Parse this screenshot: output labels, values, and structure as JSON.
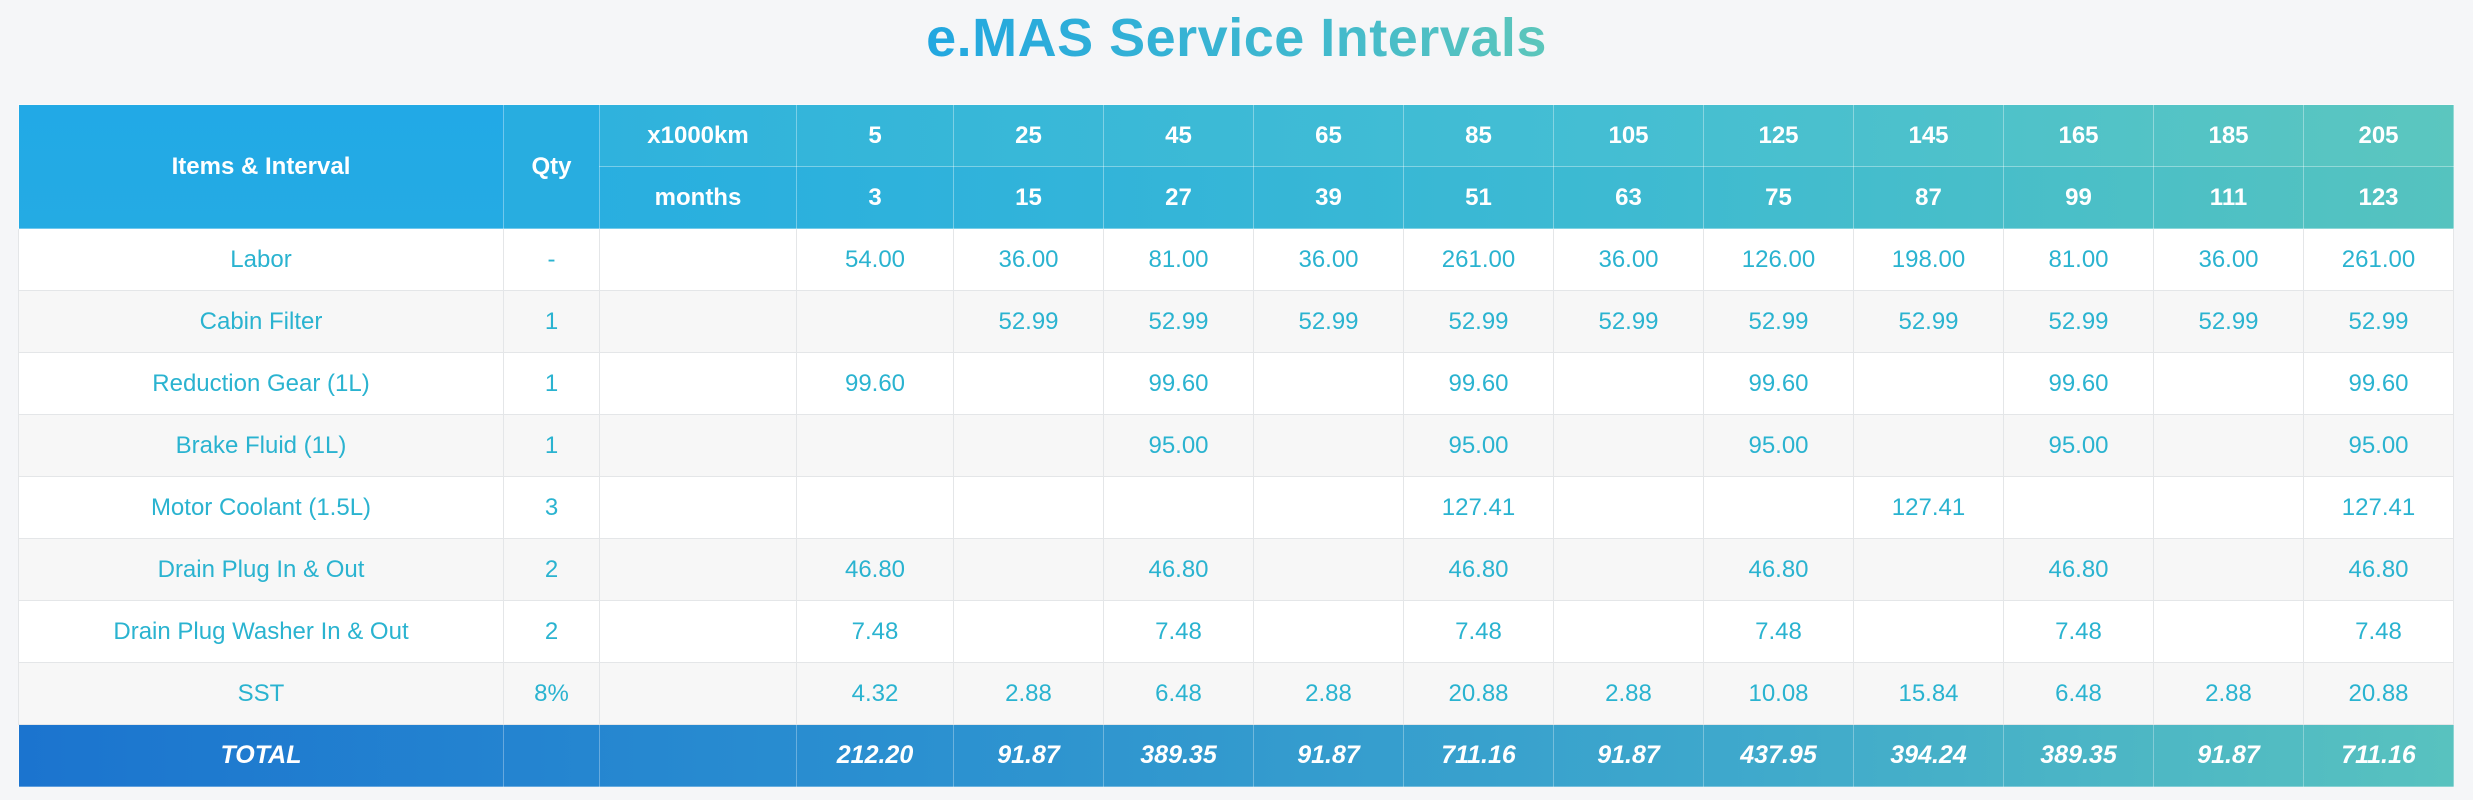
{
  "title": "e.MAS Service Intervals",
  "colors": {
    "accent_blue": "#22a9e6",
    "accent_teal": "#5bc6bf",
    "cell_text": "#2ab3d0",
    "total_start": "#1b74cf"
  },
  "header": {
    "items_label": "Items & Interval",
    "qty_label": "Qty",
    "km_label": "x1000km",
    "months_label": "months",
    "km": [
      "5",
      "25",
      "45",
      "65",
      "85",
      "105",
      "125",
      "145",
      "165",
      "185",
      "205"
    ],
    "months": [
      "3",
      "15",
      "27",
      "39",
      "51",
      "63",
      "75",
      "87",
      "99",
      "111",
      "123"
    ]
  },
  "rows": [
    {
      "item": "Labor",
      "qty": "-",
      "values": [
        "54.00",
        "36.00",
        "81.00",
        "36.00",
        "261.00",
        "36.00",
        "126.00",
        "198.00",
        "81.00",
        "36.00",
        "261.00"
      ]
    },
    {
      "item": "Cabin Filter",
      "qty": "1",
      "values": [
        "",
        "52.99",
        "52.99",
        "52.99",
        "52.99",
        "52.99",
        "52.99",
        "52.99",
        "52.99",
        "52.99",
        "52.99"
      ]
    },
    {
      "item": "Reduction Gear (1L)",
      "qty": "1",
      "values": [
        "99.60",
        "",
        "99.60",
        "",
        "99.60",
        "",
        "99.60",
        "",
        "99.60",
        "",
        "99.60"
      ]
    },
    {
      "item": "Brake Fluid (1L)",
      "qty": "1",
      "values": [
        "",
        "",
        "95.00",
        "",
        "95.00",
        "",
        "95.00",
        "",
        "95.00",
        "",
        "95.00"
      ]
    },
    {
      "item": "Motor Coolant (1.5L)",
      "qty": "3",
      "values": [
        "",
        "",
        "",
        "",
        "127.41",
        "",
        "",
        "127.41",
        "",
        "",
        "127.41"
      ]
    },
    {
      "item": "Drain Plug In & Out",
      "qty": "2",
      "values": [
        "46.80",
        "",
        "46.80",
        "",
        "46.80",
        "",
        "46.80",
        "",
        "46.80",
        "",
        "46.80"
      ]
    },
    {
      "item": "Drain Plug Washer In & Out",
      "qty": "2",
      "values": [
        "7.48",
        "",
        "7.48",
        "",
        "7.48",
        "",
        "7.48",
        "",
        "7.48",
        "",
        "7.48"
      ]
    },
    {
      "item": "SST",
      "qty": "8%",
      "values": [
        "4.32",
        "2.88",
        "6.48",
        "2.88",
        "20.88",
        "2.88",
        "10.08",
        "15.84",
        "6.48",
        "2.88",
        "20.88"
      ]
    }
  ],
  "total": {
    "label": "TOTAL",
    "values": [
      "212.20",
      "91.87",
      "389.35",
      "91.87",
      "711.16",
      "91.87",
      "437.95",
      "394.24",
      "389.35",
      "91.87",
      "711.16"
    ]
  }
}
